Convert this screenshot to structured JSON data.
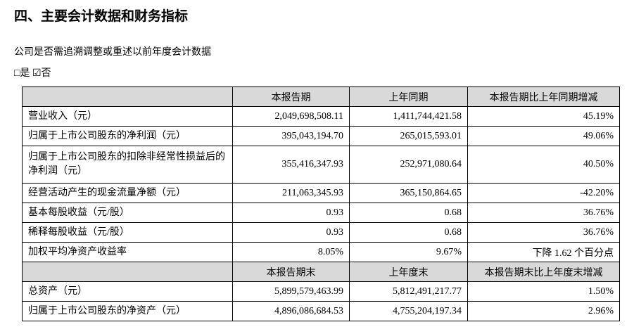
{
  "title": "四、主要会计数据和财务指标",
  "question": "公司是否需追溯调整或重述以前年度会计数据",
  "answer": "□是 ☑否",
  "table": {
    "header": [
      "本报告期",
      "上年同期",
      "本报告期比上年同期增减"
    ],
    "rows": [
      [
        "营业收入（元）",
        "2,049,698,508.11",
        "1,411,744,421.58",
        "45.19%"
      ],
      [
        "归属于上市公司股东的净利润（元）",
        "395,043,194.70",
        "265,015,593.01",
        "49.06%"
      ],
      [
        "归属于上市公司股东的扣除非经常性损益后的净利润（元）",
        "355,416,347.93",
        "252,971,080.64",
        "40.50%"
      ],
      [
        "经营活动产生的现金流量净额（元）",
        "211,063,345.93",
        "365,150,864.65",
        "-42.20%"
      ],
      [
        "基本每股收益（元/股）",
        "0.93",
        "0.68",
        "36.76%"
      ],
      [
        "稀释每股收益（元/股）",
        "0.93",
        "0.68",
        "36.76%"
      ],
      [
        "加权平均净资产收益率",
        "8.05%",
        "9.67%",
        "下降 1.62 个百分点"
      ]
    ],
    "header2": [
      "本报告期末",
      "上年度末",
      "本报告期末比上年度末增减"
    ],
    "rows2": [
      [
        "总资产（元）",
        "5,899,579,463.99",
        "5,812,491,217.77",
        "1.50%"
      ],
      [
        "归属于上市公司股东的净资产（元）",
        "4,896,086,684.53",
        "4,755,204,197.34",
        "2.96%"
      ]
    ]
  }
}
